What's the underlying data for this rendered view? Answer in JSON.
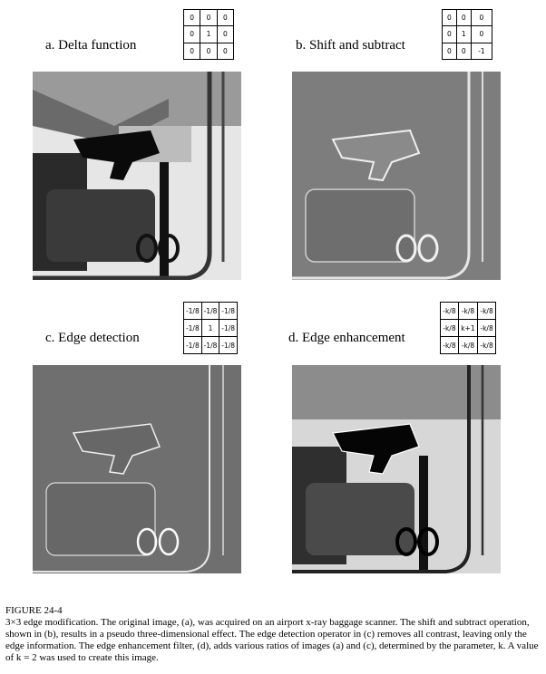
{
  "panels": [
    {
      "label": "a. Delta function",
      "kernel": [
        [
          "0",
          "0",
          "0"
        ],
        [
          "0",
          "1",
          "0"
        ],
        [
          "0",
          "0",
          "0"
        ]
      ]
    },
    {
      "label": "b. Shift and subtract",
      "kernel": [
        [
          "0",
          "0",
          "0"
        ],
        [
          "0",
          "1",
          "0"
        ],
        [
          "0",
          "0",
          "-1"
        ]
      ]
    },
    {
      "label": "c. Edge detection",
      "kernel": [
        [
          "-1/8",
          "-1/8",
          "-1/8"
        ],
        [
          "-1/8",
          "1",
          "-1/8"
        ],
        [
          "-1/8",
          "-1/8",
          "-1/8"
        ]
      ]
    },
    {
      "label": "d. Edge enhancement",
      "kernel": [
        [
          "-k/8",
          "-k/8",
          "-k/8"
        ],
        [
          "-k/8",
          "k+1",
          "-k/8"
        ],
        [
          "-k/8",
          "-k/8",
          "-k/8"
        ]
      ]
    }
  ],
  "caption": {
    "title": "FIGURE 24-4",
    "text": "3×3 edge modification.  The original image, (a), was acquired on an airport x-ray baggage scanner.  The shift and subtract operation, shown in (b), results in a pseudo three-dimensional effect.  The edge detection operator in (c) removes all contrast, leaving only the edge information.  The edge enhancement filter, (d), adds various ratios of images (a) and (c), determined by the parameter, k.  A value of k = 2 was used to create this image."
  }
}
